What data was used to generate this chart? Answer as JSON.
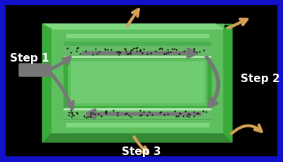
{
  "bg_color": "#000000",
  "border_color": "#1111CC",
  "arrow_gray": "#777777",
  "arrow_orange": "#D4A055",
  "dot_color": "#080808",
  "step1_label": "Step 1",
  "step2_label": "Step 2",
  "step3_label": "Step 3",
  "label_color": "#FFFFFF",
  "label_fontsize": 11,
  "figsize": [
    4.0,
    2.3
  ],
  "dpi": 100,
  "g1": "#3CB83C",
  "g2": "#5DC85D",
  "g3": "#80D880",
  "g4": "#2A8A2A",
  "g5": "#4CAF4C",
  "g_inner": "#66BB66",
  "g_light": "#90EE90",
  "white": "#FFFFFF"
}
